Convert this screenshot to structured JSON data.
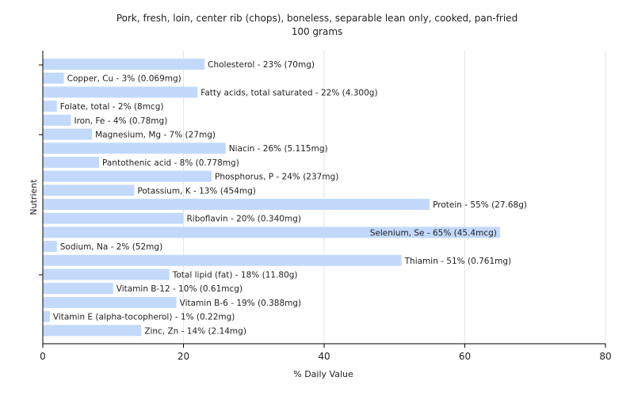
{
  "chart_data": {
    "type": "bar",
    "orientation": "horizontal",
    "title": "Pork, fresh, loin, center rib (chops), boneless, separable lean only, cooked, pan-fried",
    "subtitle": "100 grams",
    "xlabel": "% Daily Value",
    "ylabel": "Nutrient",
    "xlim": [
      0,
      80
    ],
    "xticks": [
      0,
      20,
      40,
      60,
      80
    ],
    "grid": true,
    "bar_color": "#c2d9fb",
    "categories": [
      "Cholesterol",
      "Copper, Cu",
      "Fatty acids, total saturated",
      "Folate, total",
      "Iron, Fe",
      "Magnesium, Mg",
      "Niacin",
      "Pantothenic acid",
      "Phosphorus, P",
      "Potassium, K",
      "Protein",
      "Riboflavin",
      "Selenium, Se",
      "Sodium, Na",
      "Thiamin",
      "Total lipid (fat)",
      "Vitamin B-12",
      "Vitamin B-6",
      "Vitamin E (alpha-tocopherol)",
      "Zinc, Zn"
    ],
    "values": [
      23,
      3,
      22,
      2,
      4,
      7,
      26,
      8,
      24,
      13,
      55,
      20,
      65,
      2,
      51,
      18,
      10,
      19,
      1,
      14
    ],
    "labels": [
      "Cholesterol - 23% (70mg)",
      "Copper, Cu - 3% (0.069mg)",
      "Fatty acids, total saturated - 22% (4.300g)",
      "Folate, total - 2% (8mcg)",
      "Iron, Fe - 4% (0.78mg)",
      "Magnesium, Mg - 7% (27mg)",
      "Niacin - 26% (5.115mg)",
      "Pantothenic acid - 8% (0.778mg)",
      "Phosphorus, P - 24% (237mg)",
      "Potassium, K - 13% (454mg)",
      "Protein - 55% (27.68g)",
      "Riboflavin - 20% (0.340mg)",
      "Selenium, Se - 65% (45.4mcg)",
      "Sodium, Na - 2% (52mg)",
      "Thiamin - 51% (0.761mg)",
      "Total lipid (fat) - 18% (11.80g)",
      "Vitamin B-12 - 10% (0.61mcg)",
      "Vitamin B-6 - 19% (0.388mg)",
      "Vitamin E (alpha-tocopherol) - 1% (0.22mg)",
      "Zinc, Zn - 14% (2.14mg)"
    ]
  }
}
